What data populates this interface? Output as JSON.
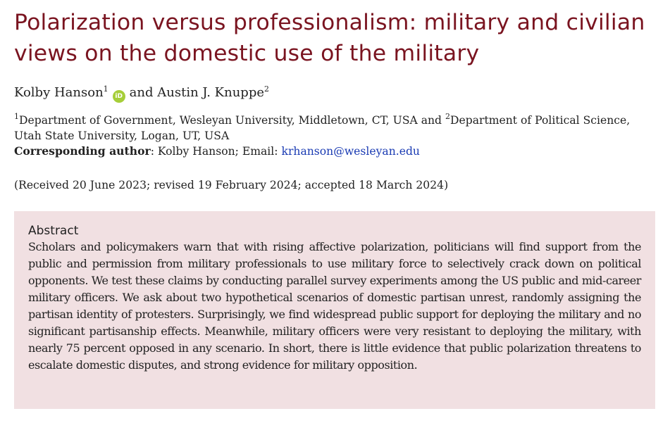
{
  "title": "Polarization versus professionalism: military and civilian views on the domestic use of the military",
  "authors": {
    "author1": {
      "name": "Kolby Hanson",
      "sup": "1",
      "orcid_label": "iD"
    },
    "conjunction": "and",
    "author2": {
      "name": "Austin J. Knuppe",
      "sup": "2"
    }
  },
  "affiliations": {
    "sup1": "1",
    "text1": "Department of Government, Wesleyan University, Middletown, CT, USA and ",
    "sup2": "2",
    "text2": "Department of Political Science, Utah State University, Logan, UT, USA"
  },
  "corresponding": {
    "label": "Corresponding author",
    "text": ": Kolby Hanson; Email: ",
    "email": "krhanson@wesleyan.edu"
  },
  "history": "(Received 20 June 2023; revised 19 February 2024; accepted 18 March 2024)",
  "abstract": {
    "heading": "Abstract",
    "body": "Scholars and policymakers warn that with rising affective polarization, politicians will find support from the public and permission from military professionals to use military force to selectively crack down on political opponents. We test these claims by conducting parallel survey experiments among the US public and mid-career military officers. We ask about two hypothetical scenarios of domestic partisan unrest, randomly assigning the partisan identity of protesters. Surprisingly, we find widespread public support for deploying the military and no significant partisanship effects. Meanwhile, military officers were very resistant to deploying the military, with nearly 75 percent opposed in any scenario. In short, there is little evidence that public polarization threatens to escalate domestic disputes, and strong evidence for military opposition."
  },
  "colors": {
    "title": "#7a1420",
    "abstract_background": "#f1e0e2",
    "link": "#1a3bb3",
    "orcid": "#a6ce39"
  },
  "icons": {
    "orcid": "orcid-icon"
  }
}
